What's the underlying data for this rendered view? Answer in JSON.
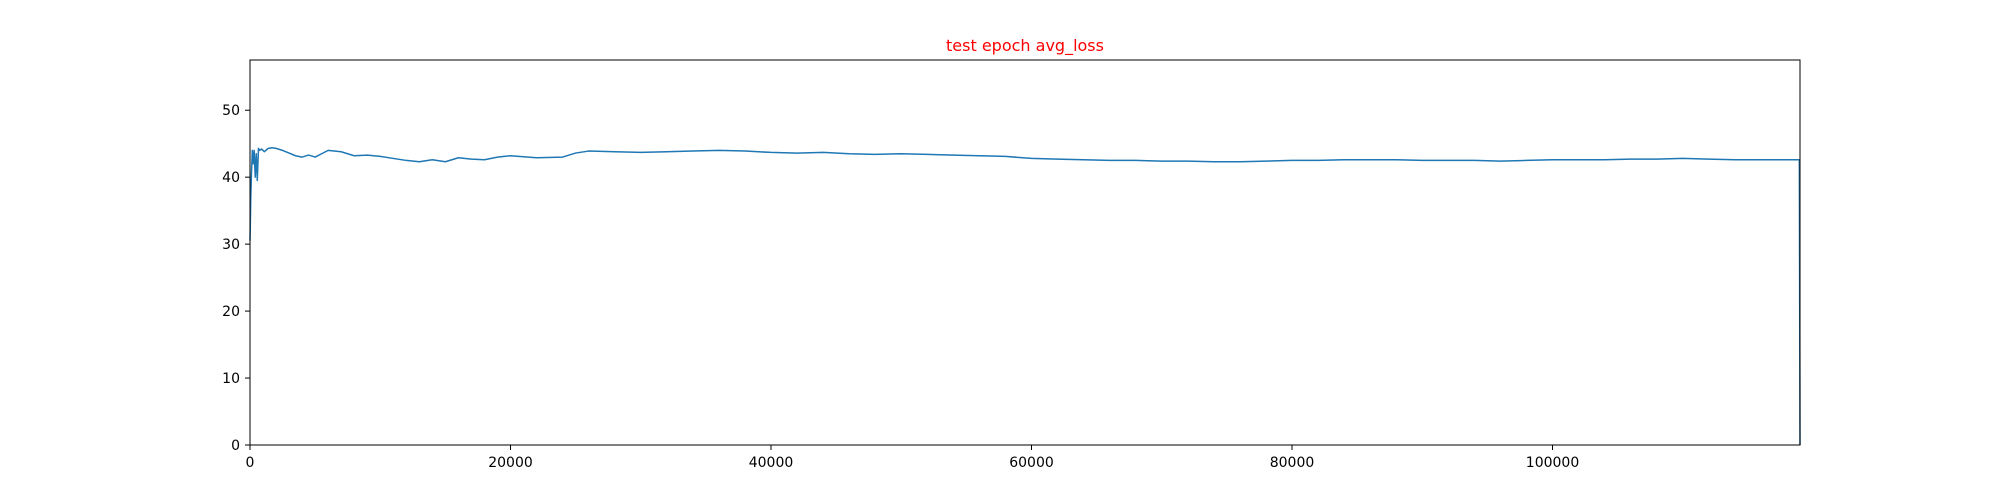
{
  "chart_data": {
    "type": "line",
    "title": "test epoch avg_loss",
    "title_color": "#ff0000",
    "xlabel": "",
    "ylabel": "",
    "xlim": [
      0,
      119000
    ],
    "ylim": [
      0,
      57.5
    ],
    "x_ticks": [
      0,
      20000,
      40000,
      60000,
      80000,
      100000
    ],
    "x_tick_labels": [
      "0",
      "20000",
      "40000",
      "60000",
      "80000",
      "100000"
    ],
    "y_ticks": [
      0,
      10,
      20,
      30,
      40,
      50
    ],
    "y_tick_labels": [
      "0",
      "10",
      "20",
      "30",
      "40",
      "50"
    ],
    "grid": false,
    "line_color": "#1f77b4",
    "series": [
      {
        "x": [
          0,
          60,
          120,
          180,
          250,
          320,
          400,
          480,
          560,
          650,
          750,
          900,
          1100,
          1400,
          1700,
          2000,
          2500,
          3000,
          3500,
          4000,
          4500,
          5000,
          5500,
          6000,
          7000,
          8000,
          9000,
          10000,
          11000,
          12000,
          13000,
          14000,
          15000,
          16000,
          17000,
          18000,
          19000,
          20000,
          22000,
          24000,
          25000,
          26000,
          28000,
          30000,
          32000,
          34000,
          36000,
          38000,
          40000,
          42000,
          44000,
          46000,
          48000,
          50000,
          52000,
          54000,
          56000,
          58000,
          60000,
          62000,
          64000,
          66000,
          68000,
          70000,
          72000,
          74000,
          76000,
          78000,
          80000,
          82000,
          84000,
          86000,
          88000,
          90000,
          92000,
          94000,
          96000,
          98000,
          100000,
          102000,
          104000,
          106000,
          108000,
          110000,
          112000,
          114000,
          116000,
          118000,
          118950,
          119000
        ],
        "y": [
          30.5,
          37.0,
          41.0,
          44.0,
          42.0,
          44.0,
          40.0,
          43.5,
          39.5,
          44.3,
          44.0,
          44.2,
          43.8,
          44.3,
          44.4,
          44.3,
          44.0,
          43.6,
          43.2,
          43.0,
          43.3,
          43.0,
          43.5,
          44.0,
          43.8,
          43.2,
          43.3,
          43.1,
          42.8,
          42.5,
          42.3,
          42.6,
          42.3,
          42.9,
          42.7,
          42.6,
          43.0,
          43.2,
          42.9,
          43.0,
          43.6,
          43.9,
          43.8,
          43.7,
          43.8,
          43.9,
          44.0,
          43.9,
          43.7,
          43.6,
          43.7,
          43.5,
          43.4,
          43.5,
          43.4,
          43.3,
          43.2,
          43.1,
          42.8,
          42.7,
          42.6,
          42.5,
          42.5,
          42.4,
          42.4,
          42.3,
          42.3,
          42.4,
          42.5,
          42.5,
          42.6,
          42.6,
          42.6,
          42.5,
          42.5,
          42.5,
          42.4,
          42.5,
          42.6,
          42.6,
          42.6,
          42.7,
          42.7,
          42.8,
          42.7,
          42.6,
          42.6,
          42.6,
          42.6,
          0.0
        ]
      }
    ]
  }
}
